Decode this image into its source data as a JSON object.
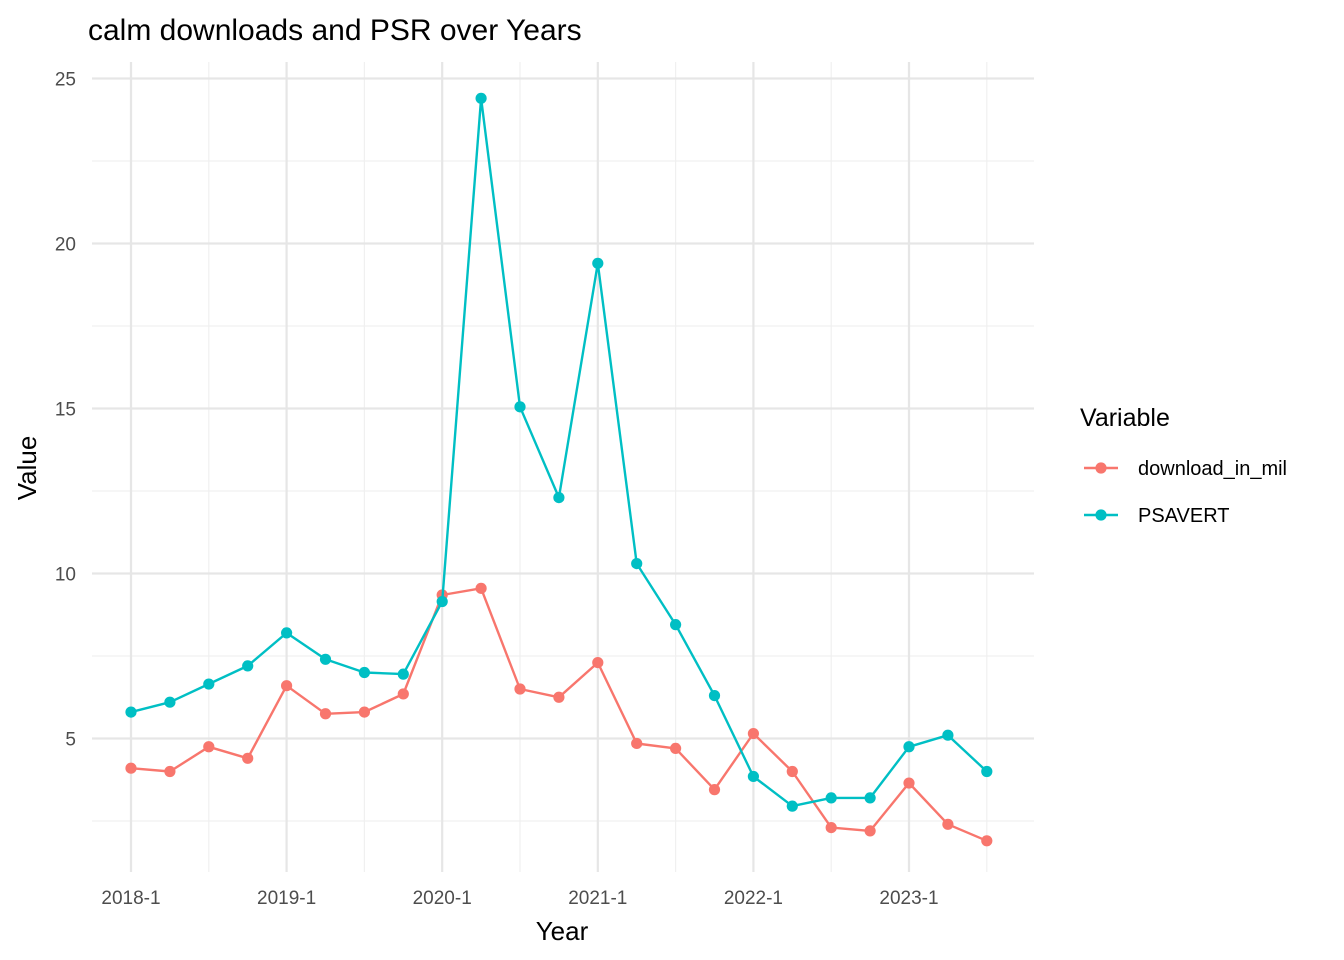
{
  "chart_data": {
    "type": "line",
    "title": "calm downloads and PSR over Years",
    "xlabel": "Year",
    "ylabel": "Value",
    "x_ticks": [
      "2018-1",
      "2019-1",
      "2020-1",
      "2021-1",
      "2022-1",
      "2023-1"
    ],
    "x_tick_index": [
      0,
      4,
      8,
      12,
      16,
      20
    ],
    "n_points": 23,
    "y_ticks": [
      5,
      10,
      15,
      20,
      25
    ],
    "ylim": [
      1.2,
      25.5
    ],
    "grid": true,
    "legend": {
      "title": "Variable",
      "position": "right"
    },
    "series": [
      {
        "name": "download_in_mil",
        "color": "#F8766D",
        "values": [
          4.1,
          4.0,
          4.75,
          4.4,
          6.6,
          5.75,
          5.8,
          6.35,
          9.35,
          9.55,
          6.5,
          6.25,
          7.3,
          4.85,
          4.7,
          3.45,
          5.15,
          4.0,
          2.3,
          2.2,
          3.65,
          2.4,
          1.9
        ]
      },
      {
        "name": "PSAVERT",
        "color": "#00BFC4",
        "values": [
          5.8,
          6.1,
          6.65,
          7.2,
          8.2,
          7.4,
          7.0,
          6.95,
          9.15,
          24.4,
          15.05,
          12.3,
          19.4,
          10.3,
          8.45,
          6.3,
          3.85,
          2.95,
          3.2,
          3.2,
          4.75,
          5.1,
          4.0
        ]
      }
    ]
  }
}
